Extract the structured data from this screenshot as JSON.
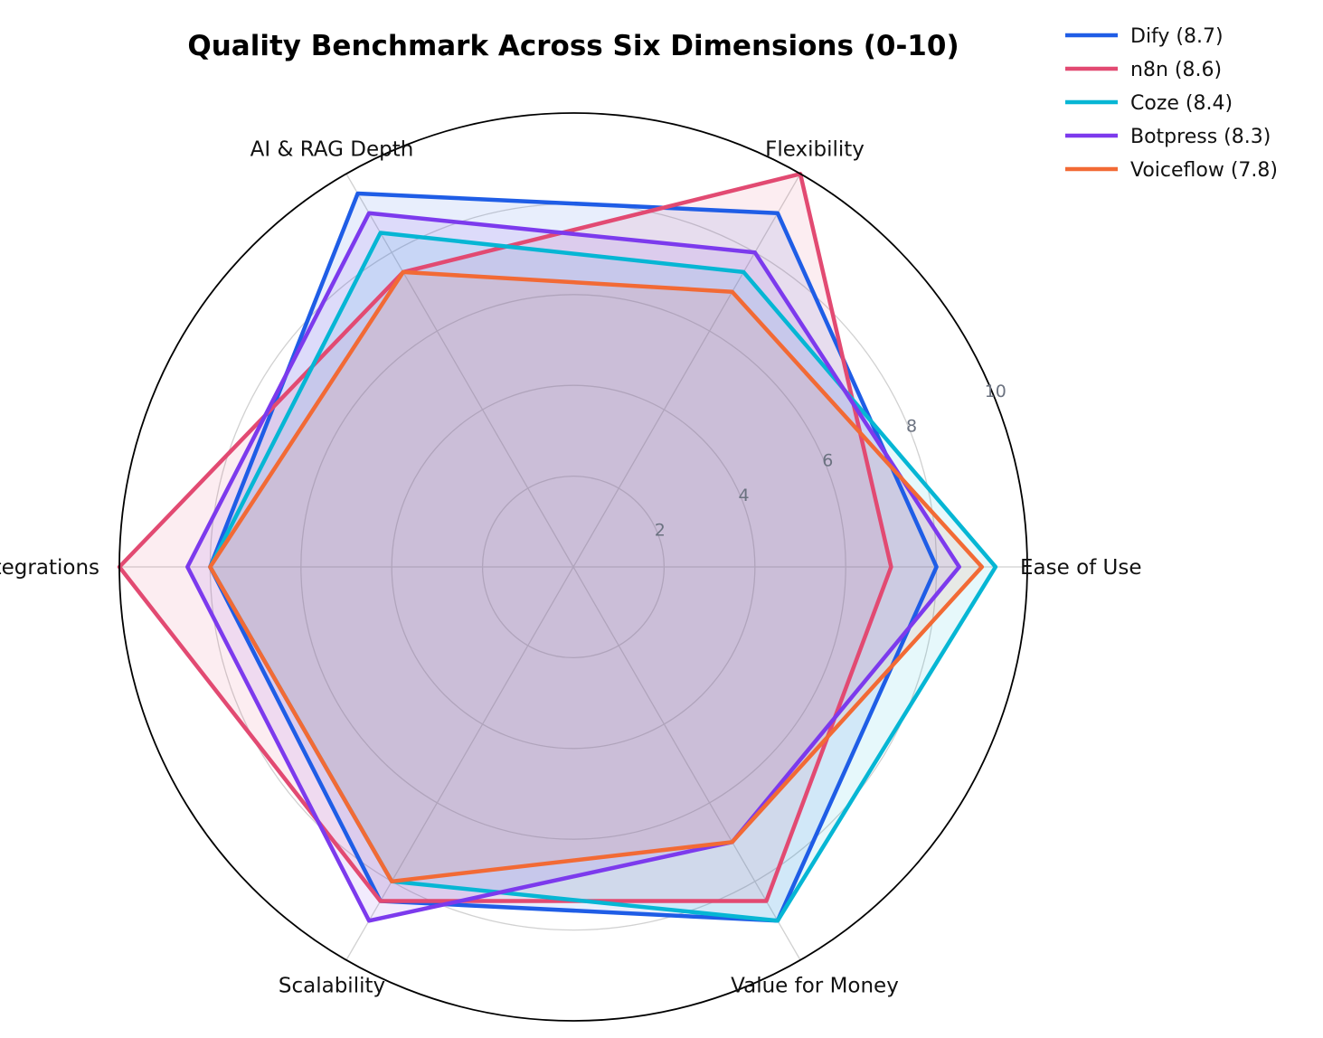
{
  "chart_data": {
    "type": "radar",
    "title": "Quality Benchmark Across Six Dimensions (0-10)",
    "axes": [
      "Ease of Use",
      "Flexibility",
      "AI & RAG Depth",
      "Integrations",
      "Scalability",
      "Value for Money"
    ],
    "rlim": [
      0,
      10
    ],
    "rticks": [
      2,
      4,
      6,
      8,
      10
    ],
    "grid": true,
    "legend_position": "top-right",
    "series": [
      {
        "name": "Dify (8.7)",
        "color": "#1f5de6",
        "values": [
          8.0,
          9.0,
          9.5,
          8.0,
          8.5,
          9.0
        ]
      },
      {
        "name": "n8n (8.6)",
        "color": "#e24a72",
        "values": [
          7.0,
          10.0,
          7.5,
          10.0,
          8.5,
          8.5
        ]
      },
      {
        "name": "Coze (8.4)",
        "color": "#06b6d4",
        "values": [
          9.3,
          7.5,
          8.5,
          8.0,
          8.0,
          9.0
        ]
      },
      {
        "name": "Botpress (8.3)",
        "color": "#7c3aed",
        "values": [
          8.5,
          8.0,
          9.0,
          8.5,
          9.0,
          7.0
        ]
      },
      {
        "name": "Voiceflow (7.8)",
        "color": "#f26a35",
        "values": [
          9.0,
          7.0,
          7.5,
          8.0,
          8.0,
          7.0
        ]
      }
    ]
  }
}
